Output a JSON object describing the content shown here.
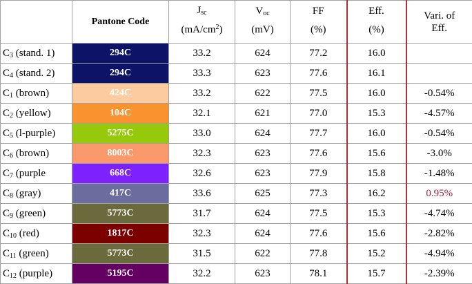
{
  "table": {
    "header": {
      "pantone": "Pantone Code",
      "jsc": {
        "base": "J",
        "sub": "sc",
        "unit": "(mA/cm",
        "sup": "2",
        "close": ")"
      },
      "voc": {
        "base": "V",
        "sub": "oc",
        "unit": "(mV)"
      },
      "ff": {
        "base": "FF",
        "unit": "(%)"
      },
      "eff": {
        "base": "Eff.",
        "unit": "(%)"
      },
      "vari": "Vari. of Eff."
    },
    "rows": [
      {
        "label": "C",
        "label_sub": "3",
        "label_rest": "(stand. 1)",
        "pantone": "294C",
        "pantone_color": "#0d1468",
        "jsc": "33.2",
        "voc": "624",
        "ff": "77.2",
        "eff": "16.0"
      },
      {
        "label": "C",
        "label_sub": "4",
        "label_rest": "(stand. 2)",
        "pantone": "294C",
        "pantone_color": "#0d1468",
        "jsc": "33.3",
        "voc": "623",
        "ff": "77.6",
        "eff": "16.1"
      },
      {
        "label": "C",
        "label_sub": "1",
        "label_rest": "(brown)",
        "pantone": "424C",
        "pantone_color": "#fccba0",
        "jsc": "33.2",
        "voc": "622",
        "ff": "77.5",
        "eff": "16.0",
        "vari": "-0.54%"
      },
      {
        "label": "C",
        "label_sub": "2",
        "label_rest": "(yellow)",
        "pantone": "104C",
        "pantone_color": "#f9932f",
        "jsc": "32.1",
        "voc": "621",
        "ff": "77.0",
        "eff": "15.3",
        "vari": "-4.57%"
      },
      {
        "label": "C",
        "label_sub": "5",
        "label_rest": "(l-purple)",
        "pantone": "5275C",
        "pantone_color": "#96c90a",
        "jsc": "33.0",
        "voc": "624",
        "ff": "77.7",
        "eff": "16.0",
        "vari": "-0.54%"
      },
      {
        "label": "C",
        "label_sub": "6",
        "label_rest": "(brown)",
        "pantone": "8003C",
        "pantone_color": "#fa9a6c",
        "jsc": "32.3",
        "voc": "623",
        "ff": "77.6",
        "eff": "15.6",
        "vari": "-3.0%"
      },
      {
        "label": "C",
        "label_sub": "7",
        "label_rest": "(purple",
        "pantone": "668C",
        "pantone_color": "#7d22fc",
        "jsc": "32.6",
        "voc": "623",
        "ff": "77.9",
        "eff": "15.8",
        "vari": "-1.48%"
      },
      {
        "label": "C",
        "label_sub": "8",
        "label_rest": "(gray)",
        "pantone": "417C",
        "pantone_color": "#6a6d9e",
        "jsc": "33.6",
        "voc": "625",
        "ff": "77.3",
        "eff": "16.2",
        "vari": "0.95%",
        "vari_color": "#a0203e"
      },
      {
        "label": "C",
        "label_sub": "9",
        "label_rest": "(green)",
        "pantone": "5773C",
        "pantone_color": "#6a6a3c",
        "jsc": "31.7",
        "voc": "624",
        "ff": "77.5",
        "eff": "15.3",
        "vari": "-4.74%"
      },
      {
        "label": "C",
        "label_sub": "10",
        "label_rest": "(red)",
        "pantone": "1817C",
        "pantone_color": "#7d0000",
        "jsc": "32.3",
        "voc": "624",
        "ff": "77.6",
        "eff": "15.6",
        "vari": "-2.82%"
      },
      {
        "label": "C",
        "label_sub": "11",
        "label_rest": "(green)",
        "pantone": "5773C",
        "pantone_color": "#6a6a3c",
        "jsc": "31.5",
        "voc": "622",
        "ff": "77.8",
        "eff": "15.2",
        "vari": "-4.94%"
      },
      {
        "label": "C",
        "label_sub": "12",
        "label_rest": "(purple)",
        "pantone": "5195C",
        "pantone_color": "#630062",
        "jsc": "32.2",
        "voc": "623",
        "ff": "78.1",
        "eff": "15.7",
        "vari": "-2.39%"
      }
    ]
  }
}
